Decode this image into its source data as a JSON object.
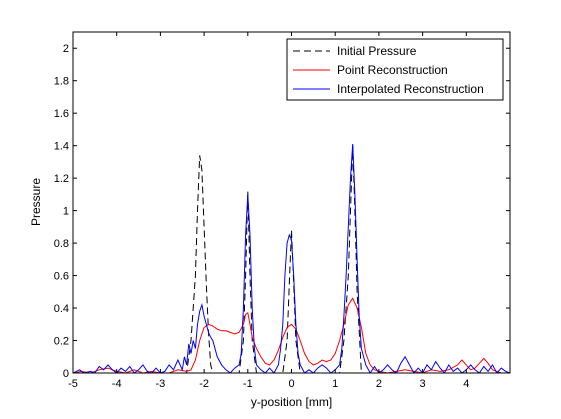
{
  "chart_data": {
    "type": "line",
    "title": "",
    "xlabel": "y-position [mm]",
    "ylabel": "Pressure",
    "xlim": [
      -5,
      5
    ],
    "ylim": [
      0,
      2.1
    ],
    "xticks": [
      -5,
      -4,
      -3,
      -2,
      -1,
      0,
      1,
      2,
      3,
      4
    ],
    "xtick_labels": [
      "-5",
      "-4",
      "-3",
      "-2",
      "-1",
      "0",
      "1",
      "2",
      "3",
      "4"
    ],
    "yticks": [
      0,
      0.2,
      0.4,
      0.6,
      0.8,
      1,
      1.2,
      1.4,
      1.6,
      1.8,
      2
    ],
    "ytick_labels": [
      "0",
      "0.2",
      "0.4",
      "0.6",
      "0.8",
      "1",
      "1.2",
      "1.4",
      "1.6",
      "1.8",
      "2"
    ],
    "grid": false,
    "legend_position": "top-right",
    "series": [
      {
        "name": "Initial Pressure",
        "color": "#000000",
        "dash": "dashed",
        "x": [
          -5,
          -2.4,
          -2.3,
          -2.2,
          -2.15,
          -2.1,
          -2.05,
          -2.0,
          -1.95,
          -1.9,
          -1.85,
          -1.8,
          -1.2,
          -1.1,
          -1.05,
          -1.0,
          -0.95,
          -0.9,
          -0.8,
          -0.2,
          -0.1,
          -0.05,
          0.0,
          0.05,
          0.1,
          0.2,
          1.1,
          1.2,
          1.3,
          1.35,
          1.4,
          1.45,
          1.5,
          1.6,
          5
        ],
        "y": [
          0,
          0,
          0.2,
          0.6,
          1.0,
          1.34,
          1.25,
          0.9,
          0.55,
          0.25,
          0.05,
          0,
          0,
          0.2,
          0.6,
          1.12,
          0.6,
          0.2,
          0,
          0,
          0.2,
          0.55,
          0.88,
          0.55,
          0.2,
          0,
          0,
          0.2,
          0.6,
          1.0,
          1.4,
          1.0,
          0.5,
          0,
          0
        ]
      },
      {
        "name": "Point Reconstruction",
        "color": "#ff0000",
        "dash": "solid",
        "x": [
          -5,
          -4.8,
          -4.6,
          -4.4,
          -4.2,
          -4.0,
          -3.8,
          -3.6,
          -3.4,
          -3.2,
          -3.0,
          -2.8,
          -2.6,
          -2.4,
          -2.3,
          -2.2,
          -2.1,
          -2.0,
          -1.9,
          -1.8,
          -1.7,
          -1.6,
          -1.5,
          -1.4,
          -1.3,
          -1.2,
          -1.1,
          -1.05,
          -1.0,
          -0.95,
          -0.9,
          -0.8,
          -0.7,
          -0.6,
          -0.5,
          -0.4,
          -0.3,
          -0.2,
          -0.1,
          0.0,
          0.1,
          0.2,
          0.3,
          0.4,
          0.5,
          0.6,
          0.7,
          0.8,
          0.9,
          1.0,
          1.1,
          1.2,
          1.3,
          1.4,
          1.5,
          1.6,
          1.7,
          1.8,
          1.9,
          2.0,
          2.2,
          2.4,
          2.6,
          2.8,
          3.0,
          3.2,
          3.4,
          3.6,
          3.8,
          3.9,
          4.0,
          4.1,
          4.2,
          4.3,
          4.4,
          4.5,
          4.6,
          4.8,
          5
        ],
        "y": [
          0.0,
          0.01,
          0.0,
          0.02,
          0.03,
          0.01,
          0.0,
          0.02,
          0.0,
          0.01,
          0.0,
          0.0,
          0.02,
          0.01,
          0.02,
          0.08,
          0.2,
          0.28,
          0.3,
          0.29,
          0.27,
          0.26,
          0.26,
          0.25,
          0.24,
          0.25,
          0.3,
          0.36,
          0.37,
          0.3,
          0.22,
          0.15,
          0.1,
          0.06,
          0.05,
          0.08,
          0.14,
          0.22,
          0.28,
          0.3,
          0.27,
          0.2,
          0.12,
          0.07,
          0.05,
          0.06,
          0.08,
          0.07,
          0.08,
          0.12,
          0.2,
          0.3,
          0.42,
          0.46,
          0.4,
          0.28,
          0.12,
          0.05,
          0.02,
          0.01,
          0.0,
          0.01,
          0.02,
          0.01,
          0.0,
          0.02,
          0.01,
          0.02,
          0.05,
          0.08,
          0.05,
          0.02,
          0.03,
          0.06,
          0.09,
          0.06,
          0.02,
          0.0,
          0.0
        ]
      },
      {
        "name": "Interpolated Reconstruction",
        "color": "#0000ff",
        "dash": "solid",
        "x": [
          -5,
          -4.85,
          -4.75,
          -4.6,
          -4.5,
          -4.4,
          -4.3,
          -4.2,
          -4.1,
          -4.0,
          -3.9,
          -3.8,
          -3.7,
          -3.6,
          -3.5,
          -3.4,
          -3.3,
          -3.2,
          -3.1,
          -3.0,
          -2.9,
          -2.8,
          -2.7,
          -2.6,
          -2.5,
          -2.45,
          -2.4,
          -2.35,
          -2.3,
          -2.25,
          -2.2,
          -2.15,
          -2.1,
          -2.05,
          -2.0,
          -1.95,
          -1.9,
          -1.85,
          -1.8,
          -1.7,
          -1.6,
          -1.5,
          -1.4,
          -1.3,
          -1.2,
          -1.15,
          -1.1,
          -1.05,
          -1.0,
          -0.95,
          -0.9,
          -0.85,
          -0.8,
          -0.7,
          -0.6,
          -0.5,
          -0.4,
          -0.3,
          -0.25,
          -0.2,
          -0.15,
          -0.1,
          -0.05,
          0.0,
          0.05,
          0.1,
          0.15,
          0.2,
          0.3,
          0.4,
          0.5,
          0.6,
          0.7,
          0.8,
          0.9,
          1.0,
          1.1,
          1.15,
          1.2,
          1.25,
          1.3,
          1.35,
          1.4,
          1.45,
          1.5,
          1.55,
          1.6,
          1.7,
          1.8,
          1.9,
          2.0,
          2.1,
          2.2,
          2.3,
          2.4,
          2.5,
          2.6,
          2.7,
          2.8,
          2.9,
          3.0,
          3.1,
          3.2,
          3.3,
          3.4,
          3.5,
          3.6,
          3.7,
          3.8,
          3.9,
          4.0,
          4.1,
          4.2,
          4.3,
          4.4,
          4.5,
          4.6,
          4.7,
          4.8,
          4.9,
          5
        ],
        "y": [
          0.0,
          0.02,
          0.0,
          0.01,
          0.0,
          0.04,
          0.02,
          0.05,
          0.02,
          0.0,
          0.03,
          0.01,
          0.04,
          0.0,
          0.02,
          0.05,
          0.01,
          0.0,
          0.03,
          0.0,
          0.01,
          0.05,
          0.02,
          0.08,
          0.02,
          0.1,
          0.05,
          0.18,
          0.12,
          0.2,
          0.15,
          0.3,
          0.38,
          0.42,
          0.35,
          0.3,
          0.25,
          0.22,
          0.2,
          0.1,
          0.05,
          0.02,
          0.0,
          0.03,
          0.05,
          0.12,
          0.4,
          0.85,
          1.1,
          0.85,
          0.4,
          0.15,
          0.05,
          0.02,
          0.0,
          0.03,
          0.0,
          0.05,
          0.15,
          0.3,
          0.6,
          0.8,
          0.85,
          0.82,
          0.6,
          0.3,
          0.12,
          0.05,
          0.0,
          0.02,
          0.0,
          0.03,
          0.05,
          0.03,
          0.0,
          0.02,
          0.05,
          0.15,
          0.35,
          0.6,
          0.9,
          1.2,
          1.41,
          1.1,
          0.7,
          0.35,
          0.15,
          0.05,
          0.0,
          0.04,
          0.0,
          0.02,
          0.05,
          0.02,
          0.0,
          0.06,
          0.1,
          0.05,
          0.0,
          0.03,
          0.0,
          0.05,
          0.02,
          0.07,
          0.03,
          0.0,
          0.05,
          0.01,
          0.03,
          0.0,
          0.02,
          0.05,
          0.02,
          0.0,
          0.04,
          0.01,
          0.05,
          0.0,
          0.03,
          0.01,
          0.0
        ]
      }
    ]
  }
}
